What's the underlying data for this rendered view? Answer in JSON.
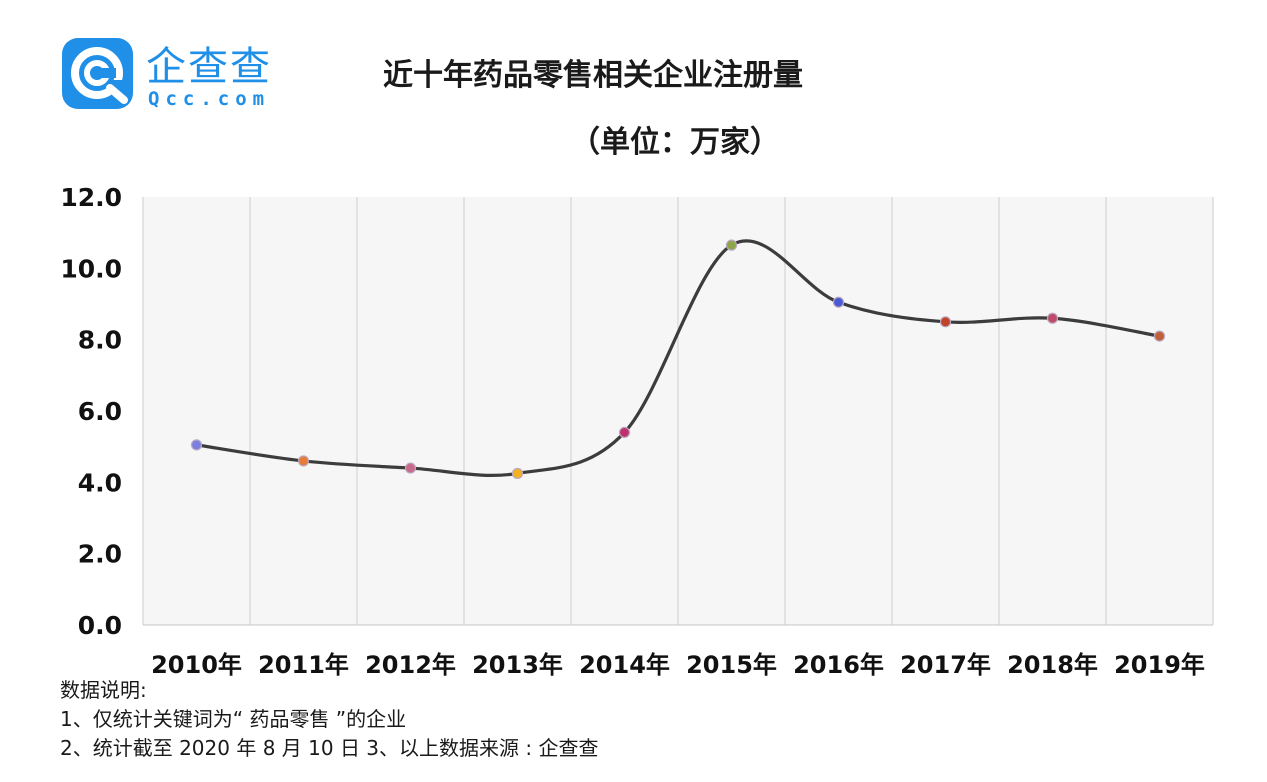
{
  "brand": {
    "name_cn": "企查查",
    "name_en": "Qcc.com",
    "color": "#1f8fe8"
  },
  "chart_data": {
    "type": "line",
    "title": "近十年药品零售相关企业注册量",
    "subtitle": "（单位：万家）",
    "categories": [
      "2010年",
      "2011年",
      "2012年",
      "2013年",
      "2014年",
      "2015年",
      "2016年",
      "2017年",
      "2018年",
      "2019年"
    ],
    "series": [
      {
        "values": [
          5.05,
          4.6,
          4.4,
          4.25,
          5.4,
          10.65,
          9.05,
          8.5,
          8.6,
          8.1
        ],
        "color": "#3c3c3c",
        "marker_colors": [
          "#7b7fe0",
          "#e67b3a",
          "#c96a8a",
          "#f2b120",
          "#c0306a",
          "#8fa648",
          "#4a5ad6",
          "#c0442a",
          "#c04a6a",
          "#c0603a"
        ]
      }
    ],
    "ylim": [
      0,
      12
    ],
    "yticks": [
      "0.0",
      "2.0",
      "4.0",
      "6.0",
      "8.0",
      "10.0",
      "12.0"
    ],
    "grid": true,
    "smooth": true
  },
  "notes": {
    "heading": "数据说明:",
    "line1": "1、仅统计关键词为“ 药品零售 ”的企业",
    "line2": "2、统计截至 2020 年 8 月 10 日 3、以上数据来源 : 企查查"
  }
}
